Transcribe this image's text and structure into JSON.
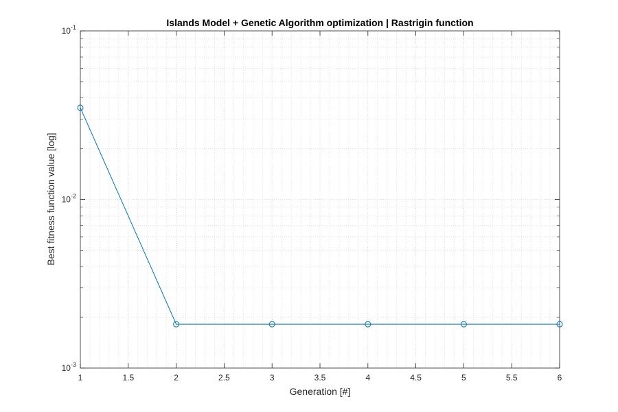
{
  "chart_data": {
    "type": "line",
    "title": "Islands Model + Genetic Algorithm optimization | Rastrigin function",
    "xlabel": "Generation [#]",
    "ylabel": "Best fitness function value [log]",
    "x": [
      1,
      2,
      3,
      4,
      5,
      6
    ],
    "series": [
      {
        "values": [
          0.035,
          0.00182,
          0.00182,
          0.00182,
          0.00182,
          0.00182
        ]
      }
    ],
    "xlim": [
      1,
      6
    ],
    "ylim": [
      0.001,
      0.1
    ],
    "yscale": "log",
    "xticks": [
      1,
      1.5,
      2,
      2.5,
      3,
      3.5,
      4,
      4.5,
      5,
      5.5,
      6
    ],
    "xtick_labels": [
      "1",
      "1.5",
      "2",
      "2.5",
      "3",
      "3.5",
      "4",
      "4.5",
      "5",
      "5.5",
      "6"
    ],
    "yticks": [
      0.001,
      0.01,
      0.1
    ],
    "ytick_labels": [
      {
        "base": "10",
        "exp": "-3"
      },
      {
        "base": "10",
        "exp": "-2"
      },
      {
        "base": "10",
        "exp": "-1"
      }
    ],
    "grid": true,
    "minor_grid": true,
    "marker": "circle",
    "colors": {
      "series": "#0072BD",
      "axis": "#262626",
      "grid": "#cfcfcf"
    }
  }
}
